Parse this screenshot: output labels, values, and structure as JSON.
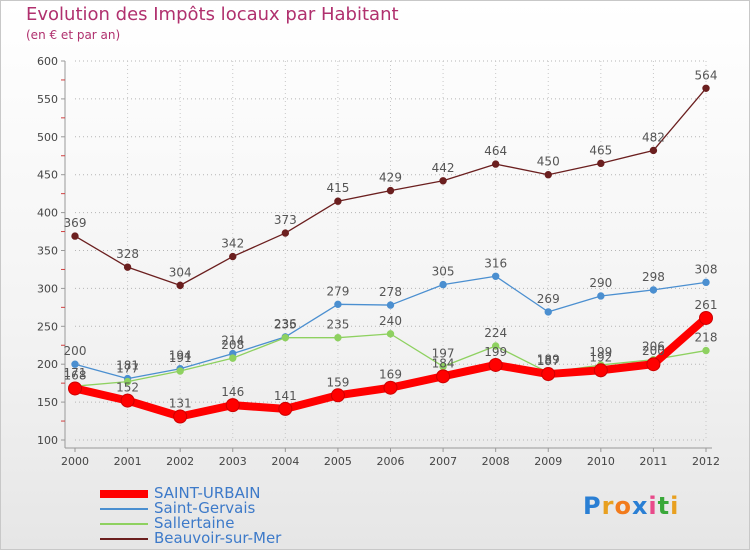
{
  "title": "Evolution des Impôts locaux par Habitant",
  "subtitle": "(en € et par an)",
  "logo": {
    "text": "Proxiti",
    "colors": [
      "#2a7fd4",
      "#e8a020",
      "#f27b1c",
      "#2a7fd4",
      "#e84a8a",
      "#3aa83a",
      "#e8a020"
    ]
  },
  "chart_data": {
    "type": "line",
    "title": "Evolution des Impôts locaux par Habitant",
    "subtitle": "(en € et par an)",
    "xlabel": "",
    "ylabel": "",
    "ylim": [
      100,
      600
    ],
    "yticks": [
      100,
      150,
      200,
      250,
      300,
      350,
      400,
      450,
      500,
      550,
      600
    ],
    "x": [
      "2000",
      "2001",
      "2002",
      "2003",
      "2004",
      "2005",
      "2006",
      "2007",
      "2008",
      "2009",
      "2010",
      "2011",
      "2012"
    ],
    "legend_position": "bottom-left",
    "series": [
      {
        "name": "Beauvoir-sur-Mer",
        "color": "#6b1f1f",
        "width": 1.3,
        "marker": 3.2,
        "values": [
          369,
          328,
          304,
          342,
          373,
          415,
          429,
          442,
          464,
          450,
          465,
          482,
          564
        ],
        "labels": [
          "369",
          "328",
          "304",
          "342",
          "373",
          "415",
          "429",
          "442",
          "464",
          "450",
          "465",
          "482",
          "564"
        ]
      },
      {
        "name": "Saint-Gervais",
        "color": "#4b8fd0",
        "width": 1.3,
        "marker": 3.2,
        "values": [
          200,
          181,
          194,
          214,
          236,
          279,
          278,
          305,
          316,
          269,
          290,
          298,
          308
        ],
        "labels": [
          "200",
          "181",
          "194",
          "214",
          "236",
          "279",
          "278",
          "305",
          "316",
          "269",
          "290",
          "298",
          "308"
        ]
      },
      {
        "name": "Sallertaine",
        "color": "#8ed160",
        "width": 1.3,
        "marker": 3.2,
        "values": [
          171,
          177,
          191,
          208,
          235,
          235,
          240,
          197,
          224,
          189,
          199,
          206,
          218
        ],
        "labels": [
          "171",
          "177",
          "191",
          "208",
          "235",
          "235",
          "240",
          "197",
          "224",
          "189",
          "199",
          "206",
          "218"
        ]
      },
      {
        "name": "SAINT-URBAIN",
        "color": "#ff0000",
        "width": 8,
        "marker": 6.5,
        "values": [
          168,
          152,
          131,
          146,
          141,
          159,
          169,
          184,
          199,
          187,
          192,
          200,
          261
        ],
        "labels": [
          "168",
          "152",
          "131",
          "146",
          "141",
          "159",
          "169",
          "184",
          "199",
          "187",
          "192",
          "200",
          "261"
        ]
      }
    ],
    "legend": [
      {
        "name": "SAINT-URBAIN",
        "color": "#ff0000"
      },
      {
        "name": "Saint-Gervais",
        "color": "#4b8fd0"
      },
      {
        "name": "Sallertaine",
        "color": "#8ed160"
      },
      {
        "name": "Beauvoir-sur-Mer",
        "color": "#6b1f1f"
      }
    ]
  }
}
